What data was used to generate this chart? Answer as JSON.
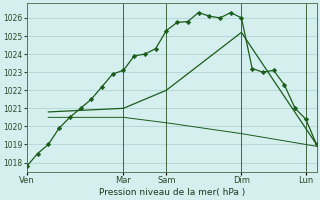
{
  "background_color": "#d5eeee",
  "grid_color": "#b0d4d4",
  "line_color": "#1a5c1a",
  "title": "Pression niveau de la mer( hPa )",
  "ylim": [
    1017.5,
    1026.8
  ],
  "yticks": [
    1018,
    1019,
    1020,
    1021,
    1022,
    1023,
    1024,
    1025,
    1026
  ],
  "day_labels": [
    "Ven",
    "Mar",
    "Sam",
    "Dim",
    "Lun"
  ],
  "day_positions": [
    0,
    9,
    13,
    20,
    26
  ],
  "xlim": [
    0,
    27
  ],
  "series1_x": [
    0,
    1,
    2,
    3,
    4,
    5,
    6,
    7,
    8,
    9,
    10,
    11,
    12,
    13,
    14,
    15,
    16,
    17,
    18,
    19,
    20,
    21,
    22,
    23,
    24,
    25,
    26,
    27
  ],
  "series1_y": [
    1017.8,
    1018.5,
    1019.0,
    1019.9,
    1020.5,
    1021.0,
    1021.5,
    1022.2,
    1022.9,
    1023.1,
    1023.9,
    1024.0,
    1024.3,
    1025.3,
    1025.75,
    1025.8,
    1026.3,
    1026.1,
    1026.0,
    1026.3,
    1026.0,
    1023.2,
    1023.0,
    1023.1,
    1022.3,
    1021.0,
    1020.4,
    1019.0
  ],
  "series2_x": [
    2,
    9,
    13,
    20,
    27
  ],
  "series2_y": [
    1020.8,
    1021.0,
    1022.0,
    1025.2,
    1019.0
  ],
  "series3_x": [
    2,
    9,
    13,
    20,
    27
  ],
  "series3_y": [
    1020.5,
    1020.5,
    1020.2,
    1019.6,
    1018.9
  ],
  "vline_color": "#446644"
}
